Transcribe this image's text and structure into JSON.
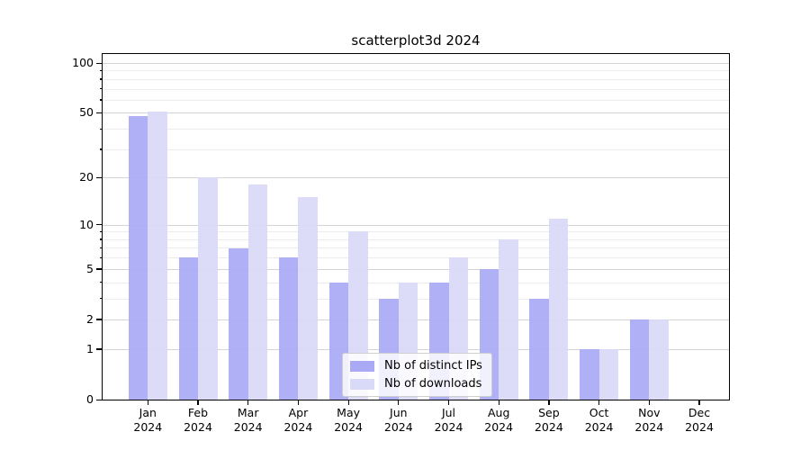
{
  "chart_data": {
    "type": "bar",
    "title": "scatterplot3d 2024",
    "categories": [
      "Jan",
      "Feb",
      "Mar",
      "Apr",
      "May",
      "Jun",
      "Jul",
      "Aug",
      "Sep",
      "Oct",
      "Nov",
      "Dec"
    ],
    "category_year_label": "2024",
    "series": [
      {
        "name": "Nb of distinct IPs",
        "color": "#a9a9f6",
        "values": [
          48,
          6,
          7,
          6,
          4,
          3,
          4,
          5,
          3,
          1,
          2,
          0
        ]
      },
      {
        "name": "Nb of downloads",
        "color": "#d9d9f8",
        "values": [
          51,
          20,
          18,
          15,
          9,
          4,
          6,
          8,
          11,
          1,
          2,
          0
        ]
      }
    ],
    "xlabel": "",
    "ylabel": "",
    "yscale": "log1p",
    "ylim": [
      0,
      113
    ],
    "y_major_ticks": [
      100,
      50,
      20,
      10,
      5,
      2,
      1,
      0
    ],
    "y_minor_ticks": [
      90,
      80,
      70,
      60,
      40,
      30,
      9,
      8,
      7,
      6,
      4,
      3
    ],
    "grid": "horizontal",
    "legend_position": "lower center"
  },
  "colors": {
    "background": "#ffffff",
    "major_grid": "#d4d4d4",
    "minor_grid": "#ececec",
    "spine": "#000000",
    "text": "#000000"
  }
}
